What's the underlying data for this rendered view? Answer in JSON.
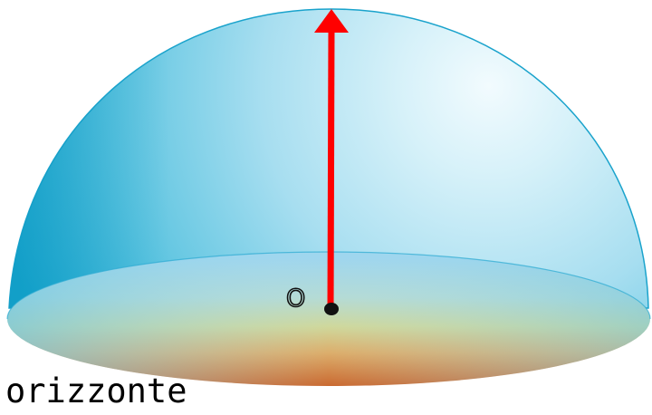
{
  "labels": {
    "observer_marker": "O",
    "horizon": "orizzonte"
  },
  "colors": {
    "sky_light": "#e9f8fd",
    "sky_mid": "#9fdced",
    "sky_dark": "#2fb5d6",
    "sky_edge": "#0f9fc6",
    "plane_top": "#a8d8ea",
    "plane_mid": "#c7d8a0",
    "plane_bottom": "#cf6a2e",
    "arrow": "#ff0000",
    "observer_dot": "#111111"
  },
  "icons": {
    "arrow": "zenith-arrow-icon",
    "observer": "observer-dot-icon"
  }
}
